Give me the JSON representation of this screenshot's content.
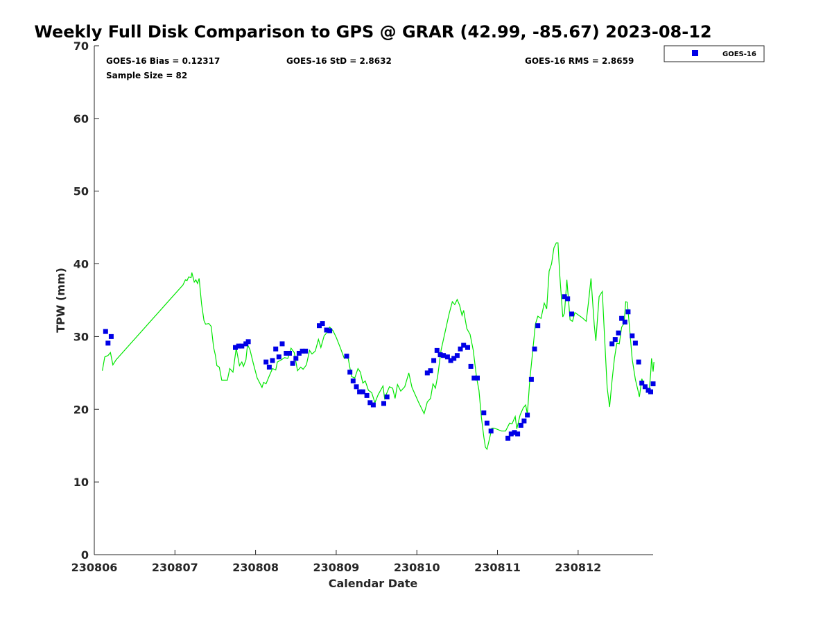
{
  "chart_data": {
    "type": "scatter",
    "title": "Weekly Full Disk Comparison to GPS @ GRAR (42.99, -85.67) 2023-08-12",
    "xlabel": "Calendar Date",
    "ylabel": "TPW (mm)",
    "xlim": [
      230806,
      230812.93
    ],
    "ylim": [
      0,
      70
    ],
    "x_ticks": [
      230806,
      230807,
      230808,
      230809,
      230810,
      230811,
      230812
    ],
    "x_tick_labels": [
      "230806",
      "230807",
      "230808",
      "230809",
      "230810",
      "230811",
      "230812"
    ],
    "y_ticks": [
      0,
      10,
      20,
      30,
      40,
      50,
      60,
      70
    ],
    "y_tick_labels": [
      "0",
      "10",
      "20",
      "30",
      "40",
      "50",
      "60",
      "70"
    ],
    "grid": false,
    "legend_position": "outside top-right",
    "stats": {
      "bias": "GOES-16 Bias = 0.12317",
      "std": "GOES-16 StD = 2.8632",
      "rms": "GOES-16 RMS = 2.8659",
      "sample": "Sample Size = 82"
    },
    "series": [
      {
        "name": "GOES-16",
        "kind": "marker",
        "color": "#0000e6",
        "points": [
          [
            230806.14,
            30.7
          ],
          [
            230806.17,
            29.1
          ],
          [
            230806.21,
            30.0
          ],
          [
            230807.75,
            28.5
          ],
          [
            230807.79,
            28.7
          ],
          [
            230807.83,
            28.7
          ],
          [
            230807.88,
            29.0
          ],
          [
            230807.91,
            29.3
          ],
          [
            230808.13,
            26.5
          ],
          [
            230808.17,
            25.8
          ],
          [
            230808.21,
            26.7
          ],
          [
            230808.25,
            28.3
          ],
          [
            230808.29,
            27.2
          ],
          [
            230808.33,
            29.0
          ],
          [
            230808.38,
            27.7
          ],
          [
            230808.42,
            27.7
          ],
          [
            230808.46,
            26.3
          ],
          [
            230808.5,
            27.0
          ],
          [
            230808.54,
            27.7
          ],
          [
            230808.58,
            28.0
          ],
          [
            230808.62,
            28.0
          ],
          [
            230808.79,
            31.5
          ],
          [
            230808.83,
            31.8
          ],
          [
            230808.88,
            30.9
          ],
          [
            230808.92,
            30.8
          ],
          [
            230809.13,
            27.3
          ],
          [
            230809.17,
            25.1
          ],
          [
            230809.21,
            23.9
          ],
          [
            230809.25,
            23.1
          ],
          [
            230809.29,
            22.4
          ],
          [
            230809.33,
            22.4
          ],
          [
            230809.38,
            21.9
          ],
          [
            230809.42,
            20.9
          ],
          [
            230809.46,
            20.6
          ],
          [
            230809.59,
            20.8
          ],
          [
            230809.63,
            21.7
          ],
          [
            230810.13,
            25.0
          ],
          [
            230810.17,
            25.3
          ],
          [
            230810.21,
            26.7
          ],
          [
            230810.25,
            28.1
          ],
          [
            230810.29,
            27.5
          ],
          [
            230810.33,
            27.4
          ],
          [
            230810.38,
            27.2
          ],
          [
            230810.42,
            26.7
          ],
          [
            230810.46,
            27.0
          ],
          [
            230810.5,
            27.4
          ],
          [
            230810.54,
            28.3
          ],
          [
            230810.58,
            28.8
          ],
          [
            230810.63,
            28.5
          ],
          [
            230810.67,
            25.9
          ],
          [
            230810.71,
            24.3
          ],
          [
            230810.75,
            24.3
          ],
          [
            230810.83,
            19.5
          ],
          [
            230810.87,
            18.1
          ],
          [
            230810.92,
            17.0
          ],
          [
            230811.13,
            16.0
          ],
          [
            230811.17,
            16.6
          ],
          [
            230811.21,
            16.8
          ],
          [
            230811.25,
            16.6
          ],
          [
            230811.29,
            17.8
          ],
          [
            230811.33,
            18.4
          ],
          [
            230811.37,
            19.2
          ],
          [
            230811.42,
            24.1
          ],
          [
            230811.46,
            28.3
          ],
          [
            230811.5,
            31.5
          ],
          [
            230811.83,
            35.5
          ],
          [
            230811.87,
            35.2
          ],
          [
            230811.92,
            33.1
          ],
          [
            230812.42,
            29.0
          ],
          [
            230812.46,
            29.6
          ],
          [
            230812.5,
            30.5
          ],
          [
            230812.54,
            32.5
          ],
          [
            230812.58,
            32.0
          ],
          [
            230812.62,
            33.4
          ],
          [
            230812.67,
            30.1
          ],
          [
            230812.71,
            29.1
          ],
          [
            230812.75,
            26.5
          ],
          [
            230812.79,
            23.6
          ],
          [
            230812.83,
            23.1
          ],
          [
            230812.87,
            22.6
          ],
          [
            230812.9,
            22.4
          ],
          [
            230812.93,
            23.5
          ]
        ]
      },
      {
        "kind": "line",
        "color": "#00e600",
        "points": [
          [
            230806.1,
            25.3
          ],
          [
            230806.13,
            27.2
          ],
          [
            230806.17,
            27.4
          ],
          [
            230806.2,
            27.8
          ],
          [
            230806.23,
            26.1
          ],
          [
            230806.27,
            26.8
          ],
          [
            230807.1,
            37.1
          ],
          [
            230807.13,
            37.8
          ],
          [
            230807.15,
            37.7
          ],
          [
            230807.17,
            38.2
          ],
          [
            230807.2,
            38.1
          ],
          [
            230807.21,
            38.8
          ],
          [
            230807.24,
            37.5
          ],
          [
            230807.26,
            37.8
          ],
          [
            230807.28,
            37.3
          ],
          [
            230807.3,
            38.0
          ],
          [
            230807.33,
            34.5
          ],
          [
            230807.36,
            32.2
          ],
          [
            230807.38,
            31.7
          ],
          [
            230807.42,
            31.8
          ],
          [
            230807.45,
            31.4
          ],
          [
            230807.48,
            28.5
          ],
          [
            230807.5,
            27.5
          ],
          [
            230807.52,
            26.0
          ],
          [
            230807.55,
            25.8
          ],
          [
            230807.58,
            24.0
          ],
          [
            230807.62,
            24.0
          ],
          [
            230807.65,
            24.0
          ],
          [
            230807.68,
            25.6
          ],
          [
            230807.72,
            25.1
          ],
          [
            230807.76,
            28.4
          ],
          [
            230807.8,
            26.0
          ],
          [
            230807.83,
            26.5
          ],
          [
            230807.85,
            25.9
          ],
          [
            230807.88,
            26.8
          ],
          [
            230807.9,
            28.9
          ],
          [
            230807.93,
            28.2
          ],
          [
            230807.97,
            26.4
          ],
          [
            230808.02,
            24.3
          ],
          [
            230808.08,
            23.0
          ],
          [
            230808.1,
            23.7
          ],
          [
            230808.13,
            23.5
          ],
          [
            230808.17,
            24.6
          ],
          [
            230808.21,
            25.6
          ],
          [
            230808.25,
            25.4
          ],
          [
            230808.27,
            26.5
          ],
          [
            230808.32,
            26.8
          ],
          [
            230808.36,
            27.1
          ],
          [
            230808.4,
            27.0
          ],
          [
            230808.44,
            28.4
          ],
          [
            230808.48,
            27.8
          ],
          [
            230808.52,
            25.3
          ],
          [
            230808.56,
            25.8
          ],
          [
            230808.59,
            25.5
          ],
          [
            230808.63,
            26.1
          ],
          [
            230808.67,
            28.1
          ],
          [
            230808.7,
            27.6
          ],
          [
            230808.74,
            28.0
          ],
          [
            230808.78,
            29.6
          ],
          [
            230808.81,
            28.5
          ],
          [
            230808.85,
            30.1
          ],
          [
            230808.88,
            30.5
          ],
          [
            230808.92,
            31.3
          ],
          [
            230808.96,
            30.8
          ],
          [
            230809.0,
            29.9
          ],
          [
            230809.05,
            28.5
          ],
          [
            230809.1,
            27.0
          ],
          [
            230809.13,
            27.2
          ],
          [
            230809.15,
            26.9
          ],
          [
            230809.19,
            24.5
          ],
          [
            230809.23,
            24.3
          ],
          [
            230809.27,
            25.6
          ],
          [
            230809.3,
            25.1
          ],
          [
            230809.33,
            23.6
          ],
          [
            230809.36,
            23.9
          ],
          [
            230809.4,
            22.6
          ],
          [
            230809.44,
            22.3
          ],
          [
            230809.48,
            20.9
          ],
          [
            230809.52,
            22.0
          ],
          [
            230809.58,
            23.2
          ],
          [
            230809.6,
            21.5
          ],
          [
            230809.63,
            22.3
          ],
          [
            230809.66,
            23.1
          ],
          [
            230809.7,
            22.9
          ],
          [
            230809.73,
            21.5
          ],
          [
            230809.76,
            23.4
          ],
          [
            230809.8,
            22.5
          ],
          [
            230809.85,
            23.1
          ],
          [
            230809.9,
            25.0
          ],
          [
            230809.94,
            23.0
          ],
          [
            230810.02,
            21.0
          ],
          [
            230810.09,
            19.4
          ],
          [
            230810.13,
            21.0
          ],
          [
            230810.17,
            21.5
          ],
          [
            230810.2,
            23.5
          ],
          [
            230810.23,
            22.9
          ],
          [
            230810.26,
            24.7
          ],
          [
            230810.3,
            28.1
          ],
          [
            230810.35,
            30.6
          ],
          [
            230810.4,
            33.1
          ],
          [
            230810.44,
            34.8
          ],
          [
            230810.47,
            34.4
          ],
          [
            230810.5,
            35.1
          ],
          [
            230810.53,
            34.3
          ],
          [
            230810.56,
            32.9
          ],
          [
            230810.58,
            33.6
          ],
          [
            230810.62,
            31.1
          ],
          [
            230810.66,
            30.3
          ],
          [
            230810.7,
            28.1
          ],
          [
            230810.74,
            24.4
          ],
          [
            230810.77,
            22.6
          ],
          [
            230810.8,
            18.9
          ],
          [
            230810.83,
            16.2
          ],
          [
            230810.85,
            14.8
          ],
          [
            230810.87,
            14.5
          ],
          [
            230810.9,
            15.9
          ],
          [
            230810.93,
            17.4
          ],
          [
            230810.96,
            17.4
          ],
          [
            230811.05,
            17.0
          ],
          [
            230811.1,
            17.0
          ],
          [
            230811.15,
            18.1
          ],
          [
            230811.18,
            18.0
          ],
          [
            230811.22,
            19.0
          ],
          [
            230811.24,
            17.3
          ],
          [
            230811.28,
            19.2
          ],
          [
            230811.32,
            20.2
          ],
          [
            230811.35,
            20.6
          ],
          [
            230811.37,
            19.3
          ],
          [
            230811.4,
            24.0
          ],
          [
            230811.43,
            27.2
          ],
          [
            230811.47,
            31.7
          ],
          [
            230811.5,
            32.8
          ],
          [
            230811.54,
            32.5
          ],
          [
            230811.58,
            34.6
          ],
          [
            230811.61,
            33.8
          ],
          [
            230811.64,
            39.0
          ],
          [
            230811.67,
            40.0
          ],
          [
            230811.7,
            42.2
          ],
          [
            230811.73,
            42.9
          ],
          [
            230811.75,
            42.9
          ],
          [
            230811.77,
            38.8
          ],
          [
            230811.81,
            32.7
          ],
          [
            230811.83,
            33.2
          ],
          [
            230811.86,
            37.8
          ],
          [
            230811.88,
            35.1
          ],
          [
            230811.9,
            32.3
          ],
          [
            230811.93,
            32.1
          ],
          [
            230811.96,
            33.3
          ],
          [
            230812.05,
            32.6
          ],
          [
            230812.1,
            32.1
          ],
          [
            230812.13,
            34.9
          ],
          [
            230812.16,
            38.0
          ],
          [
            230812.2,
            31.6
          ],
          [
            230812.22,
            29.4
          ],
          [
            230812.26,
            35.5
          ],
          [
            230812.3,
            36.2
          ],
          [
            230812.33,
            29.5
          ],
          [
            230812.36,
            23.0
          ],
          [
            230812.39,
            20.3
          ],
          [
            230812.42,
            23.9
          ],
          [
            230812.45,
            27.0
          ],
          [
            230812.48,
            29.1
          ],
          [
            230812.51,
            29.0
          ],
          [
            230812.54,
            31.3
          ],
          [
            230812.57,
            31.8
          ],
          [
            230812.59,
            34.8
          ],
          [
            230812.61,
            34.7
          ],
          [
            230812.64,
            30.9
          ],
          [
            230812.67,
            26.9
          ],
          [
            230812.71,
            24.1
          ],
          [
            230812.74,
            22.7
          ],
          [
            230812.76,
            21.7
          ],
          [
            230812.79,
            24.2
          ],
          [
            230812.82,
            23.3
          ],
          [
            230812.85,
            23.2
          ],
          [
            230812.88,
            22.4
          ],
          [
            230812.9,
            25.0
          ],
          [
            230812.91,
            27.0
          ],
          [
            230812.93,
            25.2
          ],
          [
            230812.94,
            26.5
          ]
        ]
      }
    ]
  }
}
